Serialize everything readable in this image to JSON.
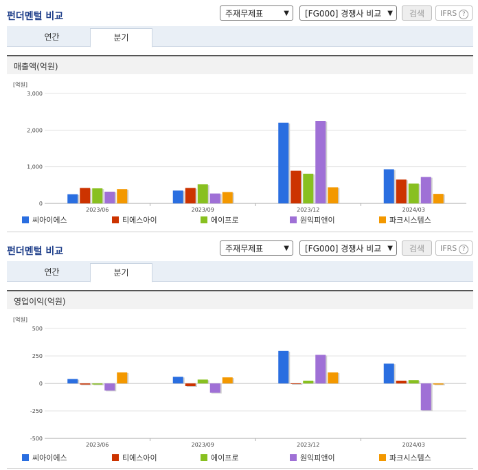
{
  "panels": [
    {
      "title": "펀더멘털 비교",
      "select1": "주재무제표",
      "select2": "[FG000] 경쟁사 비교",
      "search_label": "검색",
      "ifrs_label": "IFRS",
      "help_glyph": "?",
      "tabs": [
        {
          "label": "연간"
        },
        {
          "label": "분기"
        }
      ],
      "chart_title": "매출액(억원)"
    },
    {
      "title": "펀더멘털 비교",
      "select1": "주재무제표",
      "select2": "[FG000] 경쟁사 비교",
      "search_label": "검색",
      "ifrs_label": "IFRS",
      "help_glyph": "?",
      "tabs": [
        {
          "label": "연간"
        },
        {
          "label": "분기"
        }
      ],
      "chart_title": "영업이익(억원)"
    }
  ],
  "colors": [
    "#2a6ee0",
    "#cc3300",
    "#88c020",
    "#9f70d6",
    "#f39800"
  ],
  "chart_data": [
    {
      "type": "bar",
      "title": "매출액(억원)",
      "ylabel": "[억원]",
      "categories": [
        "2023/06",
        "2023/09",
        "2023/12",
        "2024/03"
      ],
      "ylim": [
        0,
        3000
      ],
      "yticks": [
        "3,000",
        "2,000",
        "1,000",
        "0"
      ],
      "ytick_values": [
        3000,
        2000,
        1000,
        0
      ],
      "grid": true,
      "legend": "bottom",
      "series": [
        {
          "name": "씨아이에스",
          "values": [
            250,
            350,
            2200,
            930
          ]
        },
        {
          "name": "티에스아이",
          "values": [
            420,
            420,
            890,
            650
          ]
        },
        {
          "name": "에이프로",
          "values": [
            410,
            520,
            810,
            540
          ]
        },
        {
          "name": "원익피앤이",
          "values": [
            320,
            270,
            2250,
            720
          ]
        },
        {
          "name": "파크시스템스",
          "values": [
            390,
            310,
            440,
            260
          ]
        }
      ]
    },
    {
      "type": "bar",
      "title": "영업이익(억원)",
      "ylabel": "[억원]",
      "categories": [
        "2023/06",
        "2023/09",
        "2023/12",
        "2024/03"
      ],
      "ylim": [
        -500,
        500
      ],
      "yticks": [
        "500",
        "250",
        "0",
        "-250",
        "-500"
      ],
      "ytick_values": [
        500,
        250,
        0,
        -250,
        -500
      ],
      "grid": true,
      "legend": "bottom",
      "series": [
        {
          "name": "씨아이에스",
          "values": [
            40,
            60,
            295,
            180
          ]
        },
        {
          "name": "티에스아이",
          "values": [
            -10,
            -25,
            0,
            25
          ]
        },
        {
          "name": "에이프로",
          "values": [
            -10,
            35,
            25,
            30
          ]
        },
        {
          "name": "원익피앤이",
          "values": [
            -65,
            -85,
            260,
            -245
          ]
        },
        {
          "name": "파크시스템스",
          "values": [
            100,
            55,
            100,
            -10
          ]
        }
      ]
    }
  ]
}
